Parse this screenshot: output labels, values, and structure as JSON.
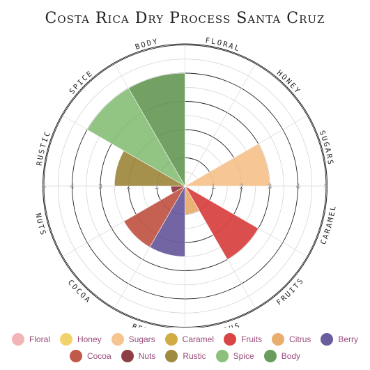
{
  "chart_data": {
    "type": "radial-bar",
    "title": "Costa Rica Dry Process Santa Cruz",
    "rlim": [
      0,
      5
    ],
    "rticks": [
      "1",
      "2",
      "3",
      "4",
      "5"
    ],
    "grid": true,
    "legend_position": "bottom",
    "categories": [
      "Floral",
      "Honey",
      "Sugars",
      "Caramel",
      "Fruits",
      "Citrus",
      "Berry",
      "Cocoa",
      "Nuts",
      "Rustic",
      "Spice",
      "Body"
    ],
    "axis_labels": [
      "FLORAL",
      "HONEY",
      "SUGARS",
      "CARAMEL",
      "FRUITS",
      "CITRUS",
      "BERRY",
      "COCOA",
      "NUTS",
      "RUSTIC",
      "SPICE",
      "BODY"
    ],
    "values": [
      0,
      0,
      3,
      0,
      3,
      1,
      2.5,
      2.5,
      0.5,
      2.5,
      4,
      4
    ],
    "colors": [
      "#f2b4b4",
      "#f2d36b",
      "#f5c48f",
      "#d2ab44",
      "#d94545",
      "#e9ad6e",
      "#6b5c9e",
      "#c2584a",
      "#8e3f45",
      "#a08a42",
      "#8cc17c",
      "#6a9c5b"
    ]
  }
}
